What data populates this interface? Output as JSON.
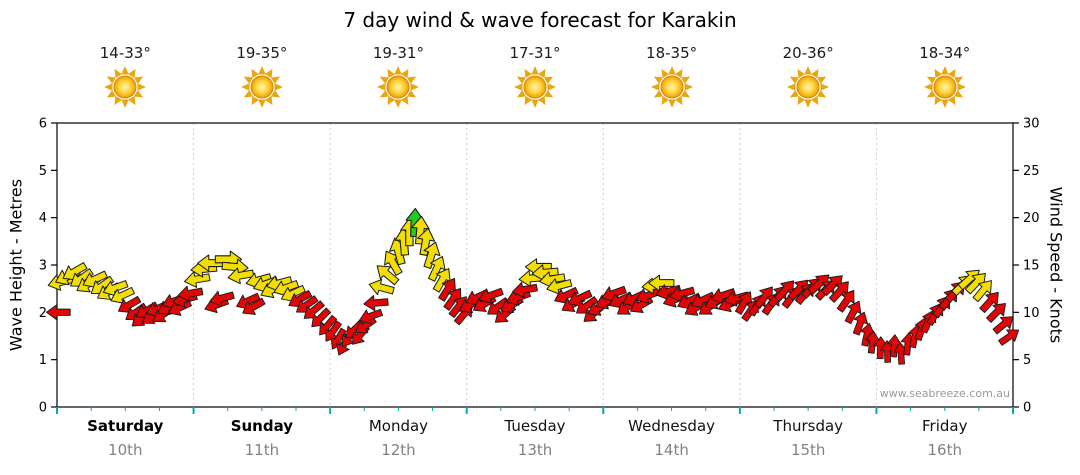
{
  "title": "7 day wind & wave forecast for Karakin",
  "watermark": "www.seabreeze.com.au",
  "forecast_days": [
    {
      "name": "Saturday",
      "date": "10th",
      "temp": "14-33°",
      "weekend": true
    },
    {
      "name": "Sunday",
      "date": "11th",
      "temp": "19-35°",
      "weekend": true
    },
    {
      "name": "Monday",
      "date": "12th",
      "temp": "19-31°",
      "weekend": false
    },
    {
      "name": "Tuesday",
      "date": "13th",
      "temp": "17-31°",
      "weekend": false
    },
    {
      "name": "Wednesday",
      "date": "14th",
      "temp": "18-35°",
      "weekend": false
    },
    {
      "name": "Thursday",
      "date": "15th",
      "temp": "20-36°",
      "weekend": false
    },
    {
      "name": "Friday",
      "date": "16th",
      "temp": "18-34°",
      "weekend": false
    }
  ],
  "chart_data": {
    "type": "scatter",
    "subtype": "wind-direction-arrows",
    "title": "7 day wind & wave forecast for Karakin",
    "left_axis": {
      "label": "Wave Height - Metres",
      "min": 0,
      "max": 6,
      "step": 1
    },
    "right_axis": {
      "label": "Wind Speed - Knots",
      "min": 0,
      "max": 30,
      "step": 5
    },
    "x_axis": {
      "unit": "days",
      "min": 0,
      "max": 7,
      "day_labels": [
        "Saturday",
        "Sunday",
        "Monday",
        "Tuesday",
        "Wednesday",
        "Thursday",
        "Friday"
      ]
    },
    "colors": {
      "y": "#F2DE00",
      "r": "#E30505",
      "g": "#1FCC1F",
      "outline": "#1b1b1b",
      "bottom_ticks": "#00AEB0"
    },
    "point_format": [
      "day_fraction",
      "knots",
      "direction_deg_0isEast_ccw",
      "color_key"
    ],
    "points": [
      [
        0.015,
        10.0,
        180,
        "r"
      ],
      [
        0.03,
        13.2,
        195,
        "y"
      ],
      [
        0.08,
        13.8,
        205,
        "y"
      ],
      [
        0.13,
        14.3,
        210,
        "y"
      ],
      [
        0.18,
        13.6,
        215,
        "y"
      ],
      [
        0.23,
        13.0,
        210,
        "y"
      ],
      [
        0.28,
        13.5,
        205,
        "y"
      ],
      [
        0.33,
        12.8,
        215,
        "y"
      ],
      [
        0.38,
        12.2,
        210,
        "y"
      ],
      [
        0.43,
        12.6,
        200,
        "y"
      ],
      [
        0.48,
        11.8,
        205,
        "y"
      ],
      [
        0.53,
        10.8,
        210,
        "r"
      ],
      [
        0.58,
        10.0,
        215,
        "r"
      ],
      [
        0.62,
        9.4,
        220,
        "r"
      ],
      [
        0.66,
        10.2,
        210,
        "r"
      ],
      [
        0.7,
        9.6,
        215,
        "r"
      ],
      [
        0.74,
        10.4,
        205,
        "r"
      ],
      [
        0.78,
        9.8,
        215,
        "r"
      ],
      [
        0.82,
        10.6,
        210,
        "r"
      ],
      [
        0.86,
        11.2,
        200,
        "r"
      ],
      [
        0.9,
        10.5,
        205,
        "r"
      ],
      [
        0.94,
        11.4,
        195,
        "r"
      ],
      [
        0.98,
        12.0,
        190,
        "r"
      ],
      [
        1.03,
        13.5,
        190,
        "y"
      ],
      [
        1.08,
        14.6,
        185,
        "y"
      ],
      [
        1.13,
        15.2,
        180,
        "y"
      ],
      [
        1.17,
        10.8,
        200,
        "r"
      ],
      [
        1.21,
        11.5,
        195,
        "r"
      ],
      [
        1.25,
        15.6,
        0,
        "y"
      ],
      [
        1.3,
        14.8,
        355,
        "y"
      ],
      [
        1.35,
        13.9,
        190,
        "y"
      ],
      [
        1.4,
        11.2,
        205,
        "r"
      ],
      [
        1.44,
        10.6,
        210,
        "r"
      ],
      [
        1.48,
        13.4,
        195,
        "y"
      ],
      [
        1.53,
        13.0,
        200,
        "y"
      ],
      [
        1.58,
        12.4,
        205,
        "y"
      ],
      [
        1.63,
        13.1,
        195,
        "y"
      ],
      [
        1.68,
        12.6,
        200,
        "y"
      ],
      [
        1.73,
        12.0,
        205,
        "y"
      ],
      [
        1.78,
        11.4,
        210,
        "r"
      ],
      [
        1.83,
        10.8,
        215,
        "r"
      ],
      [
        1.88,
        10.2,
        220,
        "r"
      ],
      [
        1.93,
        9.4,
        225,
        "r"
      ],
      [
        1.98,
        8.6,
        230,
        "r"
      ],
      [
        2.02,
        8.0,
        235,
        "r"
      ],
      [
        2.06,
        7.2,
        240,
        "r"
      ],
      [
        2.1,
        6.6,
        245,
        "r"
      ],
      [
        2.14,
        7.4,
        235,
        "r"
      ],
      [
        2.18,
        8.2,
        225,
        "r"
      ],
      [
        2.22,
        7.6,
        230,
        "r"
      ],
      [
        2.26,
        8.6,
        215,
        "r"
      ],
      [
        2.3,
        9.6,
        200,
        "r"
      ],
      [
        2.34,
        11.0,
        185,
        "r"
      ],
      [
        2.38,
        12.6,
        165,
        "y"
      ],
      [
        2.42,
        14.0,
        140,
        "y"
      ],
      [
        2.46,
        15.2,
        120,
        "y"
      ],
      [
        2.5,
        16.4,
        105,
        "y"
      ],
      [
        2.54,
        17.4,
        95,
        "y"
      ],
      [
        2.58,
        18.4,
        90,
        "y"
      ],
      [
        2.62,
        19.4,
        88,
        "g"
      ],
      [
        2.66,
        18.6,
        85,
        "y"
      ],
      [
        2.7,
        17.4,
        80,
        "y"
      ],
      [
        2.74,
        16.0,
        72,
        "y"
      ],
      [
        2.78,
        14.6,
        65,
        "y"
      ],
      [
        2.82,
        13.4,
        60,
        "y"
      ],
      [
        2.86,
        12.4,
        58,
        "r"
      ],
      [
        2.9,
        11.4,
        55,
        "r"
      ],
      [
        2.94,
        10.6,
        52,
        "r"
      ],
      [
        2.98,
        9.8,
        50,
        "r"
      ],
      [
        3.03,
        10.8,
        210,
        "r"
      ],
      [
        3.08,
        11.6,
        205,
        "r"
      ],
      [
        3.13,
        10.9,
        210,
        "r"
      ],
      [
        3.18,
        11.8,
        200,
        "r"
      ],
      [
        3.23,
        10.6,
        215,
        "r"
      ],
      [
        3.28,
        9.8,
        220,
        "r"
      ],
      [
        3.33,
        10.8,
        210,
        "r"
      ],
      [
        3.38,
        11.6,
        200,
        "r"
      ],
      [
        3.43,
        12.4,
        190,
        "r"
      ],
      [
        3.48,
        13.6,
        185,
        "y"
      ],
      [
        3.53,
        14.8,
        180,
        "y"
      ],
      [
        3.58,
        14.2,
        185,
        "y"
      ],
      [
        3.63,
        13.5,
        190,
        "y"
      ],
      [
        3.68,
        12.8,
        195,
        "y"
      ],
      [
        3.73,
        11.8,
        205,
        "r"
      ],
      [
        3.78,
        10.9,
        210,
        "r"
      ],
      [
        3.83,
        11.5,
        205,
        "r"
      ],
      [
        3.88,
        10.7,
        215,
        "r"
      ],
      [
        3.93,
        9.9,
        220,
        "r"
      ],
      [
        3.97,
        10.5,
        210,
        "r"
      ],
      [
        4.03,
        11.2,
        205,
        "r"
      ],
      [
        4.08,
        12.0,
        200,
        "r"
      ],
      [
        4.13,
        11.3,
        205,
        "r"
      ],
      [
        4.18,
        10.6,
        215,
        "r"
      ],
      [
        4.23,
        11.5,
        205,
        "r"
      ],
      [
        4.28,
        10.8,
        210,
        "r"
      ],
      [
        4.33,
        11.8,
        200,
        "r"
      ],
      [
        4.38,
        12.8,
        185,
        "y"
      ],
      [
        4.43,
        13.1,
        180,
        "y"
      ],
      [
        4.48,
        12.2,
        195,
        "r"
      ],
      [
        4.53,
        11.4,
        200,
        "r"
      ],
      [
        4.58,
        12.0,
        195,
        "r"
      ],
      [
        4.63,
        11.2,
        205,
        "r"
      ],
      [
        4.68,
        10.5,
        210,
        "r"
      ],
      [
        4.73,
        11.3,
        205,
        "r"
      ],
      [
        4.78,
        10.6,
        215,
        "r"
      ],
      [
        4.83,
        11.2,
        208,
        "r"
      ],
      [
        4.88,
        11.8,
        198,
        "r"
      ],
      [
        4.93,
        10.9,
        204,
        "r"
      ],
      [
        4.98,
        11.5,
        195,
        "r"
      ],
      [
        5.03,
        11.0,
        60,
        "r"
      ],
      [
        5.08,
        10.2,
        55,
        "r"
      ],
      [
        5.13,
        10.8,
        58,
        "r"
      ],
      [
        5.18,
        11.6,
        52,
        "r"
      ],
      [
        5.23,
        10.9,
        56,
        "r"
      ],
      [
        5.28,
        11.7,
        50,
        "r"
      ],
      [
        5.33,
        12.3,
        48,
        "r"
      ],
      [
        5.38,
        11.6,
        52,
        "r"
      ],
      [
        5.43,
        12.4,
        46,
        "r"
      ],
      [
        5.48,
        12.0,
        50,
        "r"
      ],
      [
        5.53,
        12.6,
        45,
        "r"
      ],
      [
        5.58,
        13.0,
        42,
        "r"
      ],
      [
        5.63,
        12.4,
        46,
        "r"
      ],
      [
        5.68,
        12.9,
        44,
        "r"
      ],
      [
        5.73,
        12.2,
        48,
        "r"
      ],
      [
        5.78,
        11.2,
        55,
        "r"
      ],
      [
        5.83,
        10.0,
        62,
        "r"
      ],
      [
        5.88,
        8.8,
        70,
        "r"
      ],
      [
        5.93,
        7.6,
        78,
        "r"
      ],
      [
        5.97,
        6.8,
        84,
        "r"
      ],
      [
        6.03,
        6.2,
        88,
        "r"
      ],
      [
        6.08,
        5.8,
        92,
        "r"
      ],
      [
        6.13,
        6.4,
        86,
        "r"
      ],
      [
        6.18,
        5.6,
        94,
        "r"
      ],
      [
        6.23,
        6.6,
        84,
        "r"
      ],
      [
        6.28,
        7.4,
        78,
        "r"
      ],
      [
        6.33,
        8.2,
        72,
        "r"
      ],
      [
        6.38,
        9.0,
        66,
        "r"
      ],
      [
        6.43,
        9.8,
        60,
        "r"
      ],
      [
        6.48,
        10.6,
        56,
        "r"
      ],
      [
        6.53,
        11.4,
        52,
        "r"
      ],
      [
        6.58,
        12.2,
        48,
        "r"
      ],
      [
        6.63,
        12.9,
        45,
        "y"
      ],
      [
        6.68,
        13.5,
        42,
        "y"
      ],
      [
        6.73,
        13.1,
        46,
        "y"
      ],
      [
        6.78,
        12.3,
        50,
        "y"
      ],
      [
        6.83,
        11.1,
        48,
        "r"
      ],
      [
        6.88,
        10.0,
        45,
        "r"
      ],
      [
        6.93,
        8.7,
        40,
        "r"
      ],
      [
        6.97,
        7.4,
        35,
        "r"
      ]
    ]
  }
}
